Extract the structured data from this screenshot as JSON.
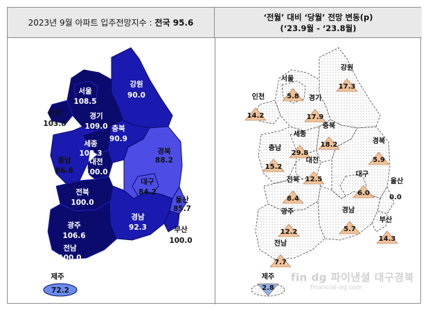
{
  "left_header": {
    "label": "2023년 9월 아파트 입주전망지수 :",
    "highlight": "전국 95.6"
  },
  "right_header": {
    "line1": "‘전월’ 대비 ‘당월’ 전망 변동(p)",
    "line2": "(‘23.9월  -  ‘23.8월)"
  },
  "left_regions": [
    {
      "name": "서울",
      "value": "108.5"
    },
    {
      "name": "인천",
      "value": "103.8"
    },
    {
      "name": "경기",
      "value": "109.0"
    },
    {
      "name": "강원",
      "value": "90.0"
    },
    {
      "name": "충북",
      "value": "90.9"
    },
    {
      "name": "세종",
      "value": "108.3"
    },
    {
      "name": "대전",
      "value": "100.0"
    },
    {
      "name": "충남",
      "value": "86.6"
    },
    {
      "name": "경북",
      "value": "88.2"
    },
    {
      "name": "대구",
      "value": "84.2"
    },
    {
      "name": "울산",
      "value": "85.7"
    },
    {
      "name": "전북",
      "value": "100.0"
    },
    {
      "name": "경남",
      "value": "92.3"
    },
    {
      "name": "부산",
      "value": "100.0"
    },
    {
      "name": "광주",
      "value": "106.6"
    },
    {
      "name": "전남",
      "value": "100.0"
    },
    {
      "name": "제주",
      "value": "72.2"
    }
  ],
  "right_regions": [
    {
      "name": "서울",
      "value": "5.8",
      "direction": "up"
    },
    {
      "name": "인천",
      "value": "14.2",
      "direction": "up"
    },
    {
      "name": "경기",
      "value": "17.9",
      "direction": "up"
    },
    {
      "name": "강원",
      "value": "17.3",
      "direction": "up"
    },
    {
      "name": "충북",
      "value": "18.2",
      "direction": "up"
    },
    {
      "name": "세종",
      "value": "29.8",
      "direction": "up"
    },
    {
      "name": "대전",
      "value": "12.5",
      "direction": "up"
    },
    {
      "name": "충남",
      "value": "15.2",
      "direction": "up"
    },
    {
      "name": "경북",
      "value": "5.9",
      "direction": "up"
    },
    {
      "name": "대구",
      "value": "6.0",
      "direction": "up"
    },
    {
      "name": "울산",
      "value": "0.0",
      "direction": "flat"
    },
    {
      "name": "전북",
      "value": "8.4",
      "direction": "up"
    },
    {
      "name": "경남",
      "value": "5.7",
      "direction": "up"
    },
    {
      "name": "부산",
      "value": "14.3",
      "direction": "up"
    },
    {
      "name": "광주",
      "value": "12.2",
      "direction": "up"
    },
    {
      "name": "전남",
      "value": "7.7",
      "direction": "up"
    },
    {
      "name": "제주",
      "value": "2.8",
      "direction": "down"
    }
  ],
  "colors": {
    "darkest": "#0b0b6e",
    "dark": "#1a1ab0",
    "mid": "#2727d0",
    "light": "#4d4de6",
    "pale": "#6a8cf0",
    "outline_right": "#555555",
    "dot_pattern": "#d9d9d9",
    "tri_up": "#f0c29a",
    "tri_down": "#8fb0e8"
  },
  "watermark": {
    "main": "fin dg 파이낸셜 대구경북",
    "sub": "financial-dg.com"
  }
}
